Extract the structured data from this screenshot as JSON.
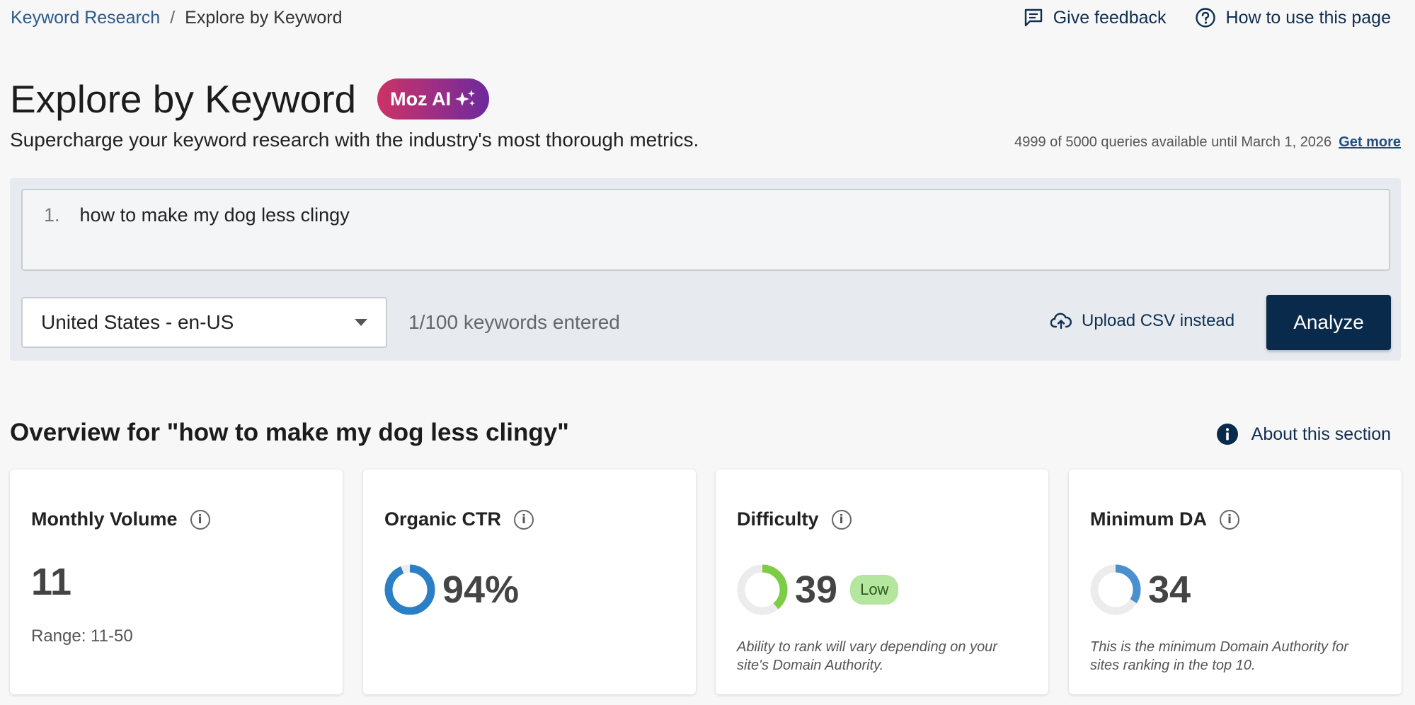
{
  "breadcrumb": {
    "parent": "Keyword Research",
    "separator": "/",
    "current": "Explore by Keyword"
  },
  "header_links": {
    "feedback": "Give feedback",
    "howto": "How to use this page"
  },
  "page": {
    "title": "Explore by Keyword",
    "ai_badge": "Moz AI",
    "subtitle": "Supercharge your keyword research with the industry's most thorough metrics.",
    "quota_text": "4999 of 5000 queries available until March 1, 2026",
    "quota_link": "Get more"
  },
  "search": {
    "line_number": "1.",
    "keyword": "how to make my dog less clingy",
    "locale": "United States - en-US",
    "count_text": "1/100 keywords entered",
    "upload_label": "Upload CSV instead",
    "analyze_label": "Analyze"
  },
  "overview": {
    "heading": "Overview for \"how to make my dog less clingy\"",
    "about_label": "About this section",
    "cards": {
      "volume": {
        "title": "Monthly Volume",
        "value": "11",
        "range": "Range: 11-50"
      },
      "ctr": {
        "title": "Organic CTR",
        "value": "94%",
        "fraction": 0.94
      },
      "difficulty": {
        "title": "Difficulty",
        "value": "39",
        "fraction": 0.39,
        "badge": "Low",
        "note": "Ability to rank will vary depending on your site's Domain Authority."
      },
      "minda": {
        "title": "Minimum DA",
        "value": "34",
        "fraction": 0.34,
        "note": "This is the minimum Domain Authority for sites ranking in the top 10."
      }
    }
  },
  "colors": {
    "navy": "#0a2a4b",
    "link": "#2b5a8c",
    "ctr_ring": "#2a7fc6",
    "difficulty_ring": "#7ccd45",
    "da_ring": "#4a8fcf",
    "ring_track": "#ececec"
  },
  "icons": {
    "feedback": "feedback-icon",
    "help": "help-circle-icon",
    "sparkle": "sparkle-icon",
    "upload": "cloud-upload-icon",
    "info": "info-icon"
  }
}
